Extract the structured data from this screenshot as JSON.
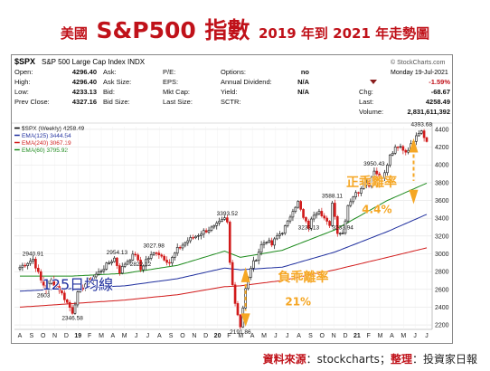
{
  "title": {
    "prefix": "美國",
    "main": "S&P500",
    "kanji": "指數",
    "suffix": "2019 年到 2021 年走勢圖"
  },
  "header": {
    "symbol": "$SPX",
    "name": "S&P 500 Large Cap Index  INDX",
    "watermark": "© StockCharts.com",
    "date": "Monday  19-Jul-2021",
    "fields": [
      {
        "label": "Open:",
        "value": "4296.40"
      },
      {
        "label": "High:",
        "value": "4296.40"
      },
      {
        "label": "Low:",
        "value": "4233.13"
      },
      {
        "label": "Prev Close:",
        "value": "4327.16"
      }
    ],
    "fields2": [
      {
        "label": "Ask:",
        "value": ""
      },
      {
        "label": "Ask Size:",
        "value": ""
      },
      {
        "label": "Bid:",
        "value": ""
      },
      {
        "label": "Bid Size:",
        "value": ""
      }
    ],
    "fields3": [
      {
        "label": "P/E:",
        "value": ""
      },
      {
        "label": "EPS:",
        "value": ""
      },
      {
        "label": "Mkt Cap:",
        "value": ""
      },
      {
        "label": "Last Size:",
        "value": ""
      }
    ],
    "fields4": [
      {
        "label": "Options:",
        "value": "no"
      },
      {
        "label": "Annual Dividend:",
        "value": "N/A"
      },
      {
        "label": "Yield:",
        "value": "N/A"
      },
      {
        "label": "SCTR:",
        "value": ""
      }
    ],
    "fields5": [
      {
        "label": "",
        "value": "-1.59%"
      },
      {
        "label": "Chg:",
        "value": "-68.67"
      },
      {
        "label": "Last:",
        "value": "4258.49"
      },
      {
        "label": "Volume:",
        "value": "2,831,611,392"
      }
    ]
  },
  "legend": [
    {
      "text": "$SPX (Weekly) 4258.49",
      "color": "#000000"
    },
    {
      "text": "EMA(125) 3444.54",
      "color": "#1f2f9e"
    },
    {
      "text": "EMA(240) 3067.19",
      "color": "#d11a1a"
    },
    {
      "text": "EMA(60) 3795.92",
      "color": "#1c8a1c"
    }
  ],
  "chart_data": {
    "type": "candlestick",
    "ylim": [
      2150,
      4430
    ],
    "yticks": [
      2200,
      2400,
      2600,
      2800,
      3000,
      3200,
      3400,
      3600,
      3800,
      4000,
      4200,
      4400
    ],
    "x_labels": [
      "A",
      "S",
      "O",
      "N",
      "D",
      "19",
      "F",
      "M",
      "A",
      "M",
      "J",
      "J",
      "A",
      "S",
      "O",
      "N",
      "D",
      "20",
      "F",
      "M",
      "A",
      "M",
      "J",
      "J",
      "A",
      "S",
      "O",
      "N",
      "D",
      "21",
      "F",
      "M",
      "A",
      "M",
      "J",
      "J"
    ],
    "annotations": [
      {
        "week": 5,
        "value": 2940.91,
        "text": "2940.91"
      },
      {
        "week": 9,
        "value": 2603,
        "text": "2603"
      },
      {
        "week": 20,
        "value": 2346.58,
        "text": "2346.58"
      },
      {
        "week": 37,
        "value": 2954.13,
        "text": "2954.13"
      },
      {
        "week": 46,
        "value": 2822.12,
        "text": "2822.12"
      },
      {
        "week": 51,
        "value": 3027.98,
        "text": "3027.98"
      },
      {
        "week": 79,
        "value": 3393.52,
        "text": "3393.52"
      },
      {
        "week": 84,
        "value": 2191.86,
        "text": "2191.86"
      },
      {
        "week": 110,
        "value": 3233.13,
        "text": "3233.13"
      },
      {
        "week": 119,
        "value": 3588.11,
        "text": "3588.11"
      },
      {
        "week": 123,
        "value": 3233.94,
        "text": "3233.94"
      },
      {
        "week": 135,
        "value": 3950.43,
        "text": "3950.43"
      },
      {
        "week": 153,
        "value": 4393.68,
        "text": "4393.68"
      }
    ],
    "keypoints": [
      [
        0,
        2850
      ],
      [
        5,
        2940
      ],
      [
        8,
        2700
      ],
      [
        10,
        2603
      ],
      [
        12,
        2700
      ],
      [
        15,
        2600
      ],
      [
        18,
        2450
      ],
      [
        20,
        2346
      ],
      [
        22,
        2550
      ],
      [
        26,
        2700
      ],
      [
        30,
        2790
      ],
      [
        34,
        2900
      ],
      [
        36,
        2950
      ],
      [
        38,
        2800
      ],
      [
        40,
        2890
      ],
      [
        42,
        2950
      ],
      [
        44,
        3000
      ],
      [
        46,
        2822
      ],
      [
        48,
        2930
      ],
      [
        52,
        3027
      ],
      [
        55,
        2950
      ],
      [
        57,
        2900
      ],
      [
        60,
        3050
      ],
      [
        64,
        3150
      ],
      [
        70,
        3250
      ],
      [
        74,
        3300
      ],
      [
        78,
        3393
      ],
      [
        79,
        3350
      ],
      [
        80,
        2900
      ],
      [
        82,
        2450
      ],
      [
        84,
        2191
      ],
      [
        86,
        2600
      ],
      [
        88,
        2850
      ],
      [
        90,
        2950
      ],
      [
        92,
        3100
      ],
      [
        94,
        3150
      ],
      [
        96,
        3100
      ],
      [
        98,
        3200
      ],
      [
        100,
        3250
      ],
      [
        102,
        3350
      ],
      [
        104,
        3500
      ],
      [
        106,
        3580
      ],
      [
        108,
        3400
      ],
      [
        110,
        3300
      ],
      [
        112,
        3450
      ],
      [
        114,
        3500
      ],
      [
        116,
        3400
      ],
      [
        118,
        3300
      ],
      [
        119,
        3588
      ],
      [
        121,
        3250
      ],
      [
        123,
        3233
      ],
      [
        125,
        3550
      ],
      [
        127,
        3650
      ],
      [
        129,
        3700
      ],
      [
        131,
        3800
      ],
      [
        133,
        3780
      ],
      [
        135,
        3950
      ],
      [
        137,
        3850
      ],
      [
        139,
        3900
      ],
      [
        141,
        4100
      ],
      [
        143,
        4180
      ],
      [
        145,
        4200
      ],
      [
        147,
        4150
      ],
      [
        149,
        4220
      ],
      [
        151,
        4350
      ],
      [
        153,
        4393
      ],
      [
        154,
        4330
      ],
      [
        155,
        4258
      ]
    ],
    "series": [
      {
        "name": "EMA(60)",
        "color": "#1c8a1c",
        "points": [
          [
            0,
            2750
          ],
          [
            20,
            2750
          ],
          [
            40,
            2780
          ],
          [
            60,
            2870
          ],
          [
            78,
            3030
          ],
          [
            84,
            2960
          ],
          [
            100,
            3040
          ],
          [
            120,
            3270
          ],
          [
            140,
            3600
          ],
          [
            155,
            3795
          ]
        ]
      },
      {
        "name": "EMA(125)",
        "color": "#1f2f9e",
        "points": [
          [
            0,
            2580
          ],
          [
            20,
            2610
          ],
          [
            40,
            2640
          ],
          [
            60,
            2720
          ],
          [
            78,
            2840
          ],
          [
            84,
            2820
          ],
          [
            100,
            2850
          ],
          [
            120,
            3020
          ],
          [
            140,
            3250
          ],
          [
            155,
            3444
          ]
        ]
      },
      {
        "name": "EMA(240)",
        "color": "#d11a1a",
        "points": [
          [
            0,
            2400
          ],
          [
            20,
            2440
          ],
          [
            40,
            2480
          ],
          [
            60,
            2540
          ],
          [
            78,
            2630
          ],
          [
            84,
            2640
          ],
          [
            100,
            2700
          ],
          [
            120,
            2820
          ],
          [
            140,
            2960
          ],
          [
            155,
            3067
          ]
        ]
      }
    ],
    "callouts": [
      {
        "text": "正乖離率",
        "color": "#f5a623",
        "value": "4.4%"
      },
      {
        "text": "負乖離率",
        "color": "#f5a623",
        "value": "21%"
      },
      {
        "text": "125日均線",
        "color": "#1f2f9e"
      }
    ]
  },
  "footer": {
    "label1": "資料來源",
    "value1": "stockcharts",
    "label2": "整理",
    "value2": "投資家日報"
  }
}
